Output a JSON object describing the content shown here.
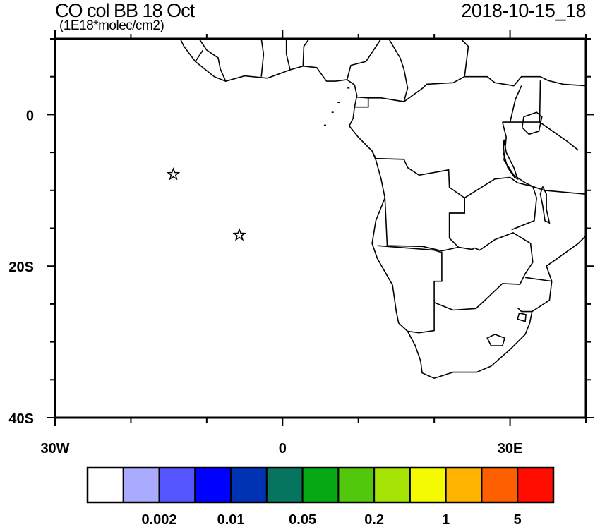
{
  "title": "CO col BB 18 Oct",
  "units": "(1E18*molec/cm2)",
  "valid_time": "2018-10-15_18",
  "map": {
    "lon_range": [
      -30,
      40
    ],
    "lat_range": [
      -40,
      10
    ],
    "lon_labels": [
      {
        "value": -30,
        "text": "30W"
      },
      {
        "value": 0,
        "text": "0"
      },
      {
        "value": 30,
        "text": "30E"
      }
    ],
    "lat_labels": [
      {
        "value": 0,
        "text": "0"
      },
      {
        "value": -20,
        "text": "20S"
      },
      {
        "value": -40,
        "text": "40S"
      }
    ],
    "markers": [
      {
        "symbol": "star",
        "lon": -14.4,
        "lat": -7.9
      },
      {
        "symbol": "star",
        "lon": -5.7,
        "lat": -15.9
      }
    ]
  },
  "colorbar": {
    "colors": [
      "#ffffff",
      "#aaaaff",
      "#5555ff",
      "#0000ff",
      "#0033b3",
      "#06745f",
      "#06a814",
      "#52c80c",
      "#a6e406",
      "#f4fa02",
      "#feb300",
      "#fe5f00",
      "#fe0d00"
    ],
    "labels": [
      {
        "after_box": 2,
        "text": "0.002"
      },
      {
        "after_box": 4,
        "text": "0.01"
      },
      {
        "after_box": 6,
        "text": "0.05"
      },
      {
        "after_box": 8,
        "text": "0.2"
      },
      {
        "after_box": 10,
        "text": "1"
      },
      {
        "after_box": 12,
        "text": "5"
      }
    ]
  }
}
